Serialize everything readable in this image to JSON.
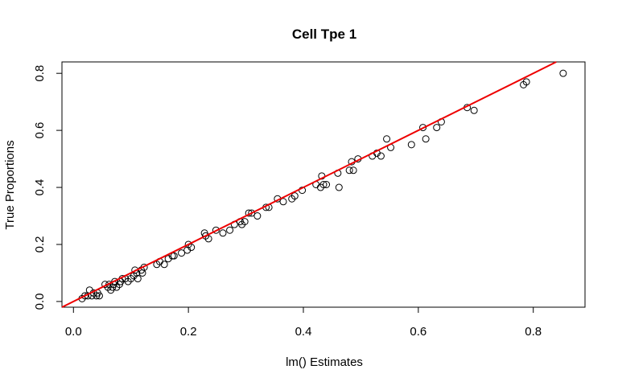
{
  "chart_data": {
    "type": "scatter",
    "title": "Cell Tpe 1",
    "xlabel": "lm() Estimates",
    "ylabel": "True Proportions",
    "xlim": [
      -0.02,
      0.89
    ],
    "ylim": [
      -0.02,
      0.84
    ],
    "x_ticks": [
      "0.0",
      "0.2",
      "0.4",
      "0.6",
      "0.8"
    ],
    "y_ticks": [
      "0.0",
      "0.2",
      "0.4",
      "0.6",
      "0.8"
    ],
    "x_tick_values": [
      0.0,
      0.2,
      0.4,
      0.6,
      0.8
    ],
    "y_tick_values": [
      0.0,
      0.2,
      0.4,
      0.6,
      0.8
    ],
    "grid": false,
    "legend": "none",
    "fit_line": {
      "intercept": 0.0,
      "slope": 1.0,
      "color": "#ee0000"
    },
    "point_color": "#000000",
    "points": [
      [
        0.015,
        0.01
      ],
      [
        0.02,
        0.02
      ],
      [
        0.025,
        0.02
      ],
      [
        0.028,
        0.04
      ],
      [
        0.032,
        0.02
      ],
      [
        0.035,
        0.03
      ],
      [
        0.04,
        0.02
      ],
      [
        0.042,
        0.03
      ],
      [
        0.045,
        0.02
      ],
      [
        0.055,
        0.06
      ],
      [
        0.06,
        0.05
      ],
      [
        0.062,
        0.06
      ],
      [
        0.065,
        0.04
      ],
      [
        0.068,
        0.05
      ],
      [
        0.07,
        0.06
      ],
      [
        0.072,
        0.07
      ],
      [
        0.075,
        0.05
      ],
      [
        0.08,
        0.06
      ],
      [
        0.082,
        0.07
      ],
      [
        0.085,
        0.08
      ],
      [
        0.09,
        0.08
      ],
      [
        0.095,
        0.07
      ],
      [
        0.1,
        0.08
      ],
      [
        0.105,
        0.09
      ],
      [
        0.107,
        0.11
      ],
      [
        0.11,
        0.1
      ],
      [
        0.112,
        0.08
      ],
      [
        0.118,
        0.11
      ],
      [
        0.12,
        0.1
      ],
      [
        0.123,
        0.12
      ],
      [
        0.145,
        0.13
      ],
      [
        0.15,
        0.14
      ],
      [
        0.158,
        0.13
      ],
      [
        0.165,
        0.15
      ],
      [
        0.172,
        0.16
      ],
      [
        0.175,
        0.16
      ],
      [
        0.188,
        0.17
      ],
      [
        0.198,
        0.18
      ],
      [
        0.2,
        0.2
      ],
      [
        0.205,
        0.19
      ],
      [
        0.228,
        0.24
      ],
      [
        0.23,
        0.23
      ],
      [
        0.235,
        0.22
      ],
      [
        0.248,
        0.25
      ],
      [
        0.26,
        0.24
      ],
      [
        0.272,
        0.25
      ],
      [
        0.28,
        0.27
      ],
      [
        0.29,
        0.28
      ],
      [
        0.293,
        0.27
      ],
      [
        0.298,
        0.28
      ],
      [
        0.305,
        0.31
      ],
      [
        0.31,
        0.31
      ],
      [
        0.32,
        0.3
      ],
      [
        0.335,
        0.33
      ],
      [
        0.34,
        0.33
      ],
      [
        0.355,
        0.36
      ],
      [
        0.365,
        0.35
      ],
      [
        0.38,
        0.36
      ],
      [
        0.385,
        0.37
      ],
      [
        0.398,
        0.39
      ],
      [
        0.422,
        0.41
      ],
      [
        0.43,
        0.4
      ],
      [
        0.432,
        0.44
      ],
      [
        0.435,
        0.41
      ],
      [
        0.44,
        0.41
      ],
      [
        0.46,
        0.45
      ],
      [
        0.462,
        0.4
      ],
      [
        0.48,
        0.46
      ],
      [
        0.484,
        0.49
      ],
      [
        0.487,
        0.46
      ],
      [
        0.495,
        0.5
      ],
      [
        0.52,
        0.51
      ],
      [
        0.528,
        0.52
      ],
      [
        0.535,
        0.51
      ],
      [
        0.545,
        0.57
      ],
      [
        0.552,
        0.54
      ],
      [
        0.588,
        0.55
      ],
      [
        0.608,
        0.61
      ],
      [
        0.613,
        0.57
      ],
      [
        0.632,
        0.61
      ],
      [
        0.64,
        0.63
      ],
      [
        0.685,
        0.68
      ],
      [
        0.697,
        0.67
      ],
      [
        0.783,
        0.76
      ],
      [
        0.788,
        0.77
      ],
      [
        0.852,
        0.8
      ]
    ]
  }
}
